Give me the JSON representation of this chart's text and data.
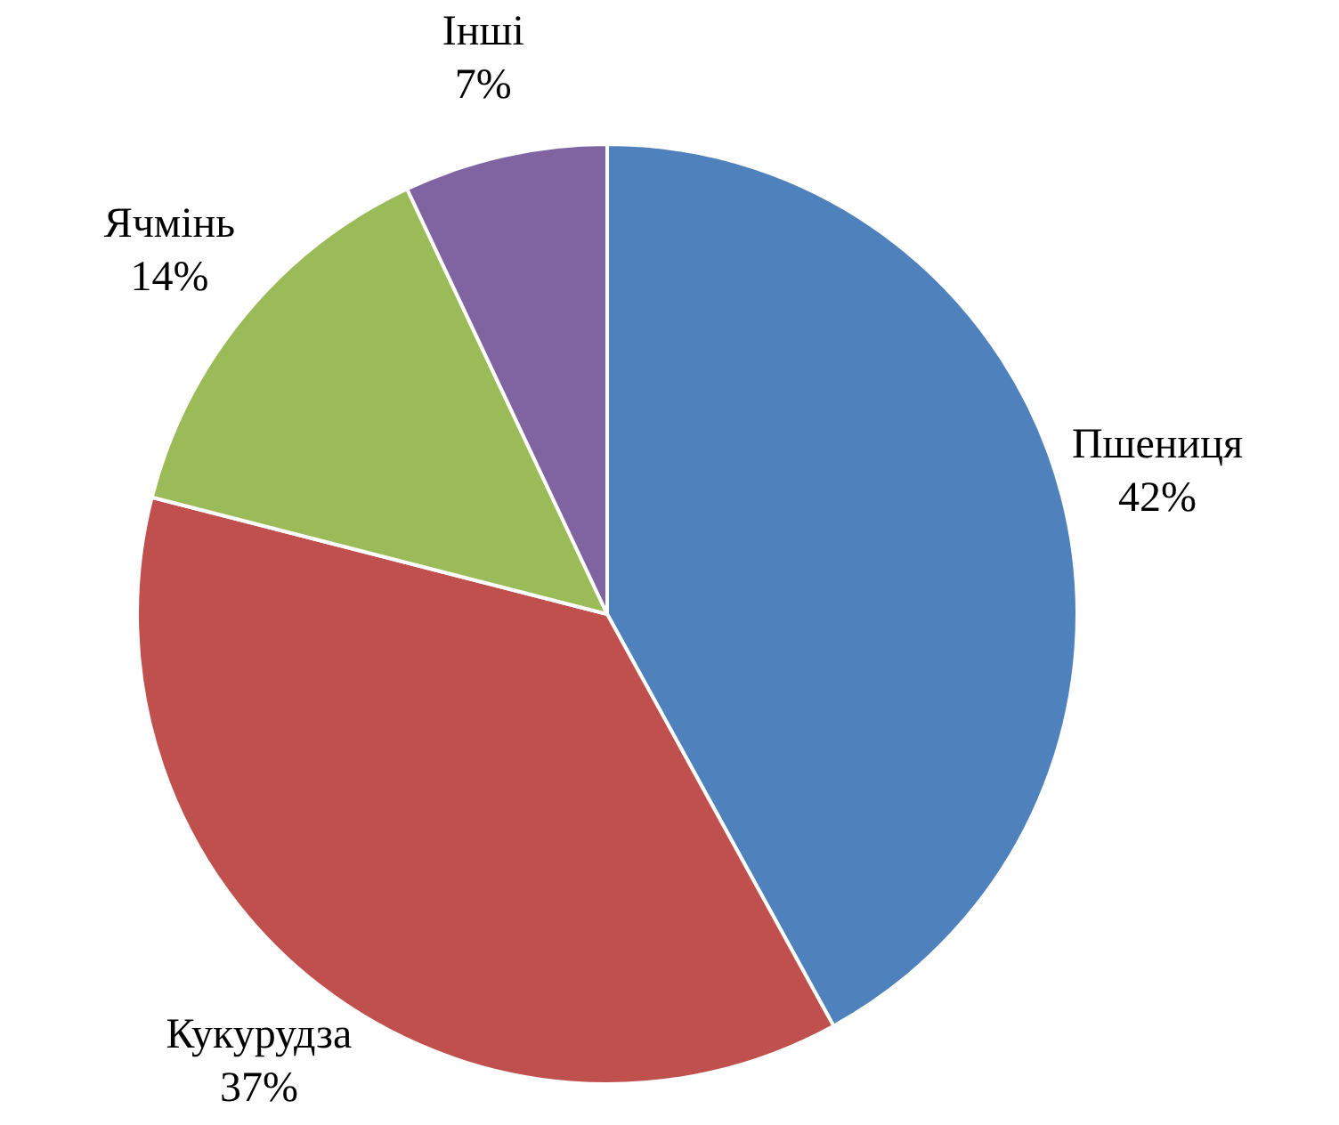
{
  "chart_data": {
    "type": "pie",
    "categories": [
      "Пшениця",
      "Кукурудза",
      "Ячмінь",
      "Інші"
    ],
    "values": [
      42,
      37,
      14,
      7
    ],
    "colors": [
      "#4f81bd",
      "#c0504d",
      "#9bbb59",
      "#8064a2"
    ],
    "value_labels": [
      "42%",
      "37%",
      "14%",
      "7%"
    ],
    "legend": false
  }
}
